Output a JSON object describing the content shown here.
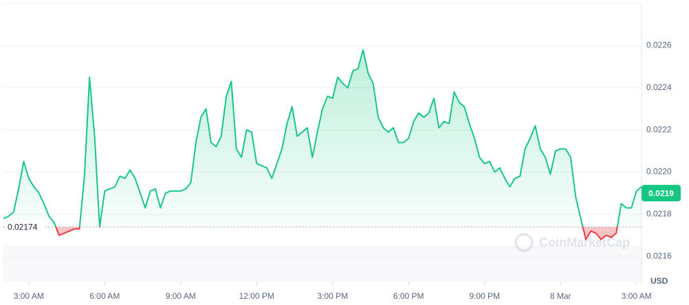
{
  "chart_data": {
    "type": "line",
    "values": [
      0.02178,
      0.02179,
      0.02181,
      0.02192,
      0.02205,
      0.02197,
      0.02193,
      0.0219,
      0.02185,
      0.02179,
      0.02176,
      0.0217,
      0.02171,
      0.02172,
      0.02173,
      0.02173,
      0.02198,
      0.02245,
      0.02217,
      0.02174,
      0.02191,
      0.02192,
      0.02193,
      0.02198,
      0.02197,
      0.02201,
      0.02197,
      0.0219,
      0.02183,
      0.02191,
      0.02192,
      0.02183,
      0.0219,
      0.02191,
      0.02191,
      0.02191,
      0.02192,
      0.02195,
      0.02214,
      0.02226,
      0.0223,
      0.02214,
      0.02212,
      0.02217,
      0.02236,
      0.02243,
      0.02211,
      0.02207,
      0.0222,
      0.02219,
      0.02204,
      0.02203,
      0.02202,
      0.02197,
      0.02204,
      0.02211,
      0.02223,
      0.02231,
      0.02217,
      0.02219,
      0.02221,
      0.02207,
      0.02219,
      0.0223,
      0.02236,
      0.02235,
      0.02245,
      0.02242,
      0.0224,
      0.02248,
      0.02249,
      0.02258,
      0.02247,
      0.02242,
      0.02226,
      0.02221,
      0.02219,
      0.02221,
      0.02214,
      0.02214,
      0.02216,
      0.02224,
      0.02228,
      0.02226,
      0.02228,
      0.02235,
      0.02221,
      0.02224,
      0.02223,
      0.02238,
      0.02233,
      0.02231,
      0.02223,
      0.02216,
      0.02207,
      0.02204,
      0.02205,
      0.022,
      0.02202,
      0.02197,
      0.02193,
      0.02197,
      0.02198,
      0.02211,
      0.02216,
      0.02222,
      0.02211,
      0.02207,
      0.02199,
      0.0221,
      0.02211,
      0.02211,
      0.02207,
      0.02188,
      0.02178,
      0.02168,
      0.02172,
      0.02171,
      0.02168,
      0.0217,
      0.02169,
      0.02171,
      0.02185,
      0.02183,
      0.02183,
      0.02191,
      0.02193
    ],
    "baseline": 0.02174,
    "current_price": 0.0219,
    "up_color": "#16c784",
    "down_color": "#ea3943",
    "ylim": [
      0.02148,
      0.0228
    ],
    "yticks": [
      0.0216,
      0.0218,
      {
        "value": 0.022,
        "label": "0.0220"
      },
      0.0222,
      0.0224,
      0.0226
    ],
    "xlim": [
      0,
      126
    ],
    "xticks": [
      {
        "value": 5,
        "label": "3:00 AM"
      },
      {
        "value": 20,
        "label": "6:00 AM"
      },
      {
        "value": 35,
        "label": "9:00 AM"
      },
      {
        "value": 50,
        "label": "12:00 PM"
      },
      {
        "value": 65,
        "label": "3:00 PM"
      },
      {
        "value": 80,
        "label": "6:00 PM"
      },
      {
        "value": 95,
        "label": "9:00 PM"
      },
      {
        "value": 110,
        "label": "8 Mar"
      },
      {
        "value": 125,
        "label": "3:00 AM"
      }
    ],
    "y_axis_unit": "USD",
    "watermark": "CoinMarketCap",
    "grid": true
  }
}
